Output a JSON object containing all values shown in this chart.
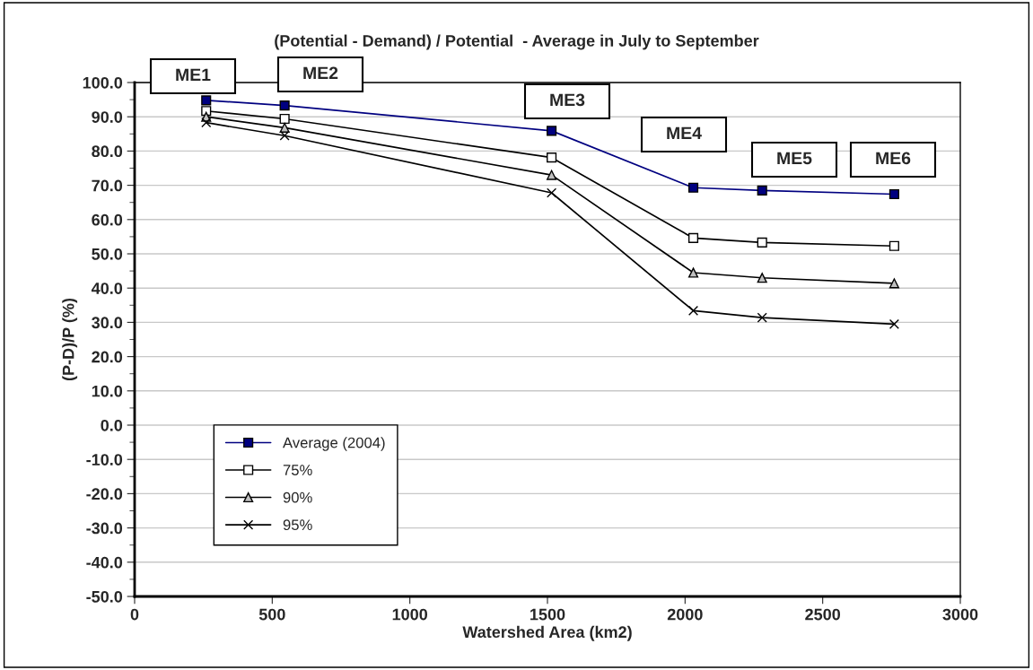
{
  "chart_data": {
    "type": "line",
    "title": "(Potential - Demand) / Potential  - Average in July to September",
    "xlabel": "Watershed Area (km2)",
    "ylabel": "(P-D)/P (%)",
    "x": [
      260,
      545,
      1515,
      2030,
      2280,
      2760
    ],
    "series": [
      {
        "name": "Average (2004)",
        "color": "#000080",
        "marker": "square",
        "values": [
          94.8,
          93.3,
          85.9,
          69.3,
          68.5,
          67.4
        ]
      },
      {
        "name": "75%",
        "color": "#000000",
        "marker": "square",
        "values": [
          91.7,
          89.4,
          78.1,
          54.6,
          53.3,
          52.3
        ]
      },
      {
        "name": "90%",
        "color": "#000000",
        "marker": "triangle",
        "values": [
          90.0,
          86.8,
          73.0,
          44.5,
          43.0,
          41.4
        ]
      },
      {
        "name": "95%",
        "color": "#000000",
        "marker": "cross",
        "values": [
          88.3,
          84.5,
          67.8,
          33.4,
          31.4,
          29.5
        ]
      }
    ],
    "xlim": [
      0,
      3000
    ],
    "xticks": [
      0,
      500,
      1000,
      1500,
      2000,
      2500,
      3000
    ],
    "ylim": [
      -50,
      100
    ],
    "yticks": [
      {
        "value": -50,
        "label": "-50.0"
      },
      {
        "value": -40,
        "label": "-40.0"
      },
      {
        "value": -30,
        "label": "-30.0"
      },
      {
        "value": -20,
        "label": "-20.0"
      },
      {
        "value": -10,
        "label": "-10.0"
      },
      {
        "value": 0,
        "label": "0.0"
      },
      {
        "value": 10,
        "label": "10.0"
      },
      {
        "value": 20,
        "label": "20.0"
      },
      {
        "value": 30,
        "label": "30.0"
      },
      {
        "value": 40,
        "label": "40.0"
      },
      {
        "value": 50,
        "label": "50.0"
      },
      {
        "value": 60,
        "label": "60.0"
      },
      {
        "value": 70,
        "label": "70.0"
      },
      {
        "value": 80,
        "label": "80.0"
      },
      {
        "value": 90,
        "label": "90.0"
      },
      {
        "value": 100,
        "label": "100.0"
      }
    ],
    "grid": "y",
    "legend": "bottom left",
    "line_style": "solid",
    "annotations": [
      "ME1",
      "ME2",
      "ME3",
      "ME4",
      "ME5",
      "ME6"
    ]
  }
}
